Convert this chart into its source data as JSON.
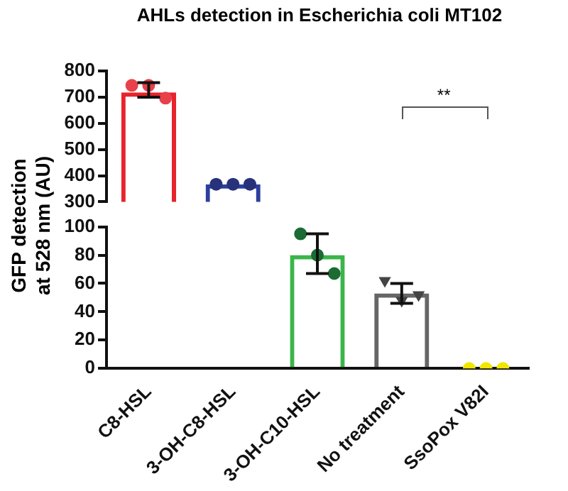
{
  "chart_data": [
    {
      "type": "bar",
      "title": "AHLs detection in Escherichia coli MT102",
      "ylabel": "GFP detection at 528 nm (AU)",
      "categories": [
        "C8-HSL",
        "3-OH-C8-HSL",
        "3-OH-C10-HSL",
        "No treatment",
        "SsoPox V82I"
      ],
      "series": [
        {
          "type": "bar",
          "colors": [
            "#e8232b",
            "#2b3f9e",
            "#3ab54a",
            "#666666",
            "#f5e61a"
          ],
          "values": [
            718,
            367,
            null,
            null,
            null
          ],
          "errors": [
            [
              700,
              755
            ],
            null,
            null,
            null,
            null
          ]
        },
        {
          "type": "scatter",
          "color": "#e8414a",
          "marker": "circle",
          "x": [
            "C8-HSL",
            "C8-HSL",
            "C8-HSL"
          ],
          "values": [
            745,
            745,
            696
          ]
        },
        {
          "type": "scatter",
          "color": "#27327a",
          "marker": "circle",
          "x": [
            "3-OH-C8-HSL",
            "3-OH-C8-HSL",
            "3-OH-C8-HSL"
          ],
          "values": [
            367,
            367,
            367
          ]
        }
      ],
      "ylim": [
        300,
        800
      ],
      "yticks": [
        300,
        400,
        500,
        600,
        700,
        800
      ],
      "tick_labels": "y",
      "grid": false,
      "legend": false,
      "annotations": [
        "**"
      ]
    },
    {
      "type": "bar",
      "categories": [
        "C8-HSL",
        "3-OH-C8-HSL",
        "3-OH-C10-HSL",
        "No treatment",
        "SsoPox V82I"
      ],
      "series": [
        {
          "type": "bar",
          "colors": [
            "#e8232b",
            "#2b3f9e",
            "#3ab54a",
            "#666666",
            "#f5e61a"
          ],
          "values": [
            null,
            null,
            80,
            53,
            0
          ],
          "errors": [
            null,
            null,
            [
              67,
              95
            ],
            [
              46,
              60
            ],
            null
          ]
        },
        {
          "type": "scatter",
          "color": "#1c6b34",
          "marker": "circle",
          "x": [
            "3-OH-C10-HSL",
            "3-OH-C10-HSL",
            "3-OH-C10-HSL"
          ],
          "values": [
            95,
            80,
            67
          ]
        },
        {
          "type": "scatter",
          "color": "#444444",
          "marker": "triangle",
          "x": [
            "No treatment",
            "No treatment",
            "No treatment"
          ],
          "values": [
            62,
            48,
            52
          ]
        },
        {
          "type": "scatter",
          "color": "#f2e600",
          "marker": "circle",
          "x": [
            "SsoPox V82I",
            "SsoPox V82I",
            "SsoPox V82I"
          ],
          "values": [
            0,
            0,
            0
          ]
        }
      ],
      "ylim": [
        0,
        100
      ],
      "yticks": [
        0,
        20,
        40,
        60,
        80,
        100
      ],
      "grid": false,
      "legend": false
    }
  ]
}
